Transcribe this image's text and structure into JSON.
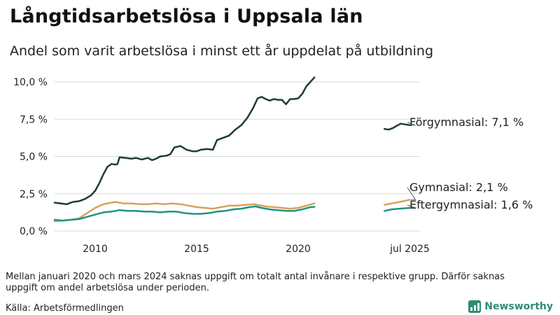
{
  "title": "Långtidsarbetslösa i Uppsala län",
  "subtitle": "Andel som varit arbetslösa i minst ett år uppdelat på utbildning",
  "footnote": "Mellan januari 2020 och mars 2024 saknas uppgift om totalt antal invånare i respektive grupp. Därför saknas uppgift om andel arbetslösa under perioden.",
  "source": "Källa: Arbetsförmedlingen",
  "brand": "Newsworthy",
  "colors": {
    "forgymnasial": "#1f3d33",
    "gymnasial": "#d4a45c",
    "eftergymnasial": "#1f9484",
    "grid": "#d9d9d9",
    "brand": "#2e8b74"
  },
  "chart_data": {
    "type": "line",
    "title": "Långtidsarbetslösa i Uppsala län",
    "xlabel": "",
    "ylabel": "",
    "ylim": [
      0,
      10.8
    ],
    "yticks": [
      0,
      2.5,
      5.0,
      7.5,
      10.0
    ],
    "ytick_labels": [
      "0,0 %",
      "2,5 %",
      "5,0 %",
      "7,5 %",
      "10,0 %"
    ],
    "xtick_labels": [
      {
        "x": 2010,
        "label": "2010"
      },
      {
        "x": 2015,
        "label": "2015"
      },
      {
        "x": 2020,
        "label": "2020"
      },
      {
        "x": 2025.5,
        "label": "jul 2025"
      }
    ],
    "xlim": [
      2008.0,
      2026.0
    ],
    "grid": true,
    "series": [
      {
        "name": "Förgymnasial",
        "label": "Förgymnasial: 7,1 %",
        "color_key": "forgymnasial",
        "segments": [
          [
            [
              2008.0,
              1.9
            ],
            [
              2008.3,
              1.85
            ],
            [
              2008.6,
              1.8
            ],
            [
              2008.9,
              1.95
            ],
            [
              2009.2,
              2.0
            ],
            [
              2009.5,
              2.15
            ],
            [
              2009.8,
              2.4
            ],
            [
              2010.0,
              2.7
            ],
            [
              2010.2,
              3.2
            ],
            [
              2010.4,
              3.8
            ],
            [
              2010.6,
              4.3
            ],
            [
              2010.8,
              4.5
            ],
            [
              2011.0,
              4.45
            ],
            [
              2011.1,
              4.5
            ],
            [
              2011.2,
              4.95
            ],
            [
              2011.5,
              4.9
            ],
            [
              2011.8,
              4.85
            ],
            [
              2012.0,
              4.9
            ],
            [
              2012.3,
              4.8
            ],
            [
              2012.6,
              4.9
            ],
            [
              2012.8,
              4.75
            ],
            [
              2013.0,
              4.85
            ],
            [
              2013.2,
              5.0
            ],
            [
              2013.5,
              5.05
            ],
            [
              2013.7,
              5.15
            ],
            [
              2013.9,
              5.6
            ],
            [
              2014.2,
              5.7
            ],
            [
              2014.5,
              5.45
            ],
            [
              2014.8,
              5.35
            ],
            [
              2015.0,
              5.35
            ],
            [
              2015.2,
              5.45
            ],
            [
              2015.5,
              5.5
            ],
            [
              2015.8,
              5.45
            ],
            [
              2016.0,
              6.1
            ],
            [
              2016.3,
              6.25
            ],
            [
              2016.6,
              6.4
            ],
            [
              2016.9,
              6.8
            ],
            [
              2017.2,
              7.1
            ],
            [
              2017.5,
              7.6
            ],
            [
              2017.8,
              8.3
            ],
            [
              2018.0,
              8.9
            ],
            [
              2018.2,
              9.0
            ],
            [
              2018.4,
              8.85
            ],
            [
              2018.6,
              8.75
            ],
            [
              2018.8,
              8.85
            ],
            [
              2019.0,
              8.8
            ],
            [
              2019.2,
              8.8
            ],
            [
              2019.4,
              8.5
            ],
            [
              2019.6,
              8.85
            ],
            [
              2019.8,
              8.85
            ],
            [
              2020.0,
              8.9
            ],
            [
              2020.2,
              9.2
            ],
            [
              2020.4,
              9.7
            ],
            [
              2020.6,
              10.0
            ],
            [
              2020.8,
              10.3
            ]
          ],
          [
            [
              2024.25,
              6.85
            ],
            [
              2024.45,
              6.8
            ],
            [
              2024.65,
              6.9
            ],
            [
              2024.85,
              7.05
            ],
            [
              2025.05,
              7.2
            ],
            [
              2025.25,
              7.15
            ],
            [
              2025.5,
              7.1
            ]
          ]
        ]
      },
      {
        "name": "Gymnasial",
        "label": "Gymnasial: 2,1 %",
        "color_key": "gymnasial",
        "segments": [
          [
            [
              2008.0,
              0.65
            ],
            [
              2008.4,
              0.7
            ],
            [
              2008.8,
              0.75
            ],
            [
              2009.2,
              0.85
            ],
            [
              2009.6,
              1.2
            ],
            [
              2010.0,
              1.55
            ],
            [
              2010.4,
              1.8
            ],
            [
              2010.8,
              1.9
            ],
            [
              2011.0,
              1.95
            ],
            [
              2011.4,
              1.85
            ],
            [
              2011.8,
              1.85
            ],
            [
              2012.2,
              1.8
            ],
            [
              2012.6,
              1.8
            ],
            [
              2013.0,
              1.85
            ],
            [
              2013.4,
              1.8
            ],
            [
              2013.8,
              1.85
            ],
            [
              2014.2,
              1.8
            ],
            [
              2014.6,
              1.7
            ],
            [
              2015.0,
              1.6
            ],
            [
              2015.4,
              1.55
            ],
            [
              2015.8,
              1.5
            ],
            [
              2016.2,
              1.6
            ],
            [
              2016.6,
              1.7
            ],
            [
              2017.0,
              1.7
            ],
            [
              2017.4,
              1.75
            ],
            [
              2017.8,
              1.8
            ],
            [
              2018.0,
              1.75
            ],
            [
              2018.4,
              1.65
            ],
            [
              2018.8,
              1.6
            ],
            [
              2019.2,
              1.55
            ],
            [
              2019.6,
              1.5
            ],
            [
              2020.0,
              1.55
            ],
            [
              2020.4,
              1.7
            ],
            [
              2020.8,
              1.85
            ]
          ],
          [
            [
              2024.25,
              1.75
            ],
            [
              2024.6,
              1.85
            ],
            [
              2025.0,
              1.95
            ],
            [
              2025.5,
              2.1
            ]
          ]
        ]
      },
      {
        "name": "Eftergymnasial",
        "label": "Eftergymnasial: 1,6 %",
        "color_key": "eftergymnasial",
        "segments": [
          [
            [
              2008.0,
              0.75
            ],
            [
              2008.4,
              0.7
            ],
            [
              2008.8,
              0.75
            ],
            [
              2009.2,
              0.8
            ],
            [
              2009.6,
              0.95
            ],
            [
              2010.0,
              1.1
            ],
            [
              2010.4,
              1.25
            ],
            [
              2010.8,
              1.3
            ],
            [
              2011.2,
              1.4
            ],
            [
              2011.6,
              1.35
            ],
            [
              2012.0,
              1.35
            ],
            [
              2012.4,
              1.3
            ],
            [
              2012.8,
              1.3
            ],
            [
              2013.2,
              1.25
            ],
            [
              2013.6,
              1.3
            ],
            [
              2014.0,
              1.3
            ],
            [
              2014.4,
              1.2
            ],
            [
              2014.8,
              1.15
            ],
            [
              2015.2,
              1.15
            ],
            [
              2015.6,
              1.2
            ],
            [
              2016.0,
              1.3
            ],
            [
              2016.4,
              1.35
            ],
            [
              2016.8,
              1.45
            ],
            [
              2017.2,
              1.5
            ],
            [
              2017.6,
              1.6
            ],
            [
              2017.9,
              1.65
            ],
            [
              2018.2,
              1.55
            ],
            [
              2018.6,
              1.45
            ],
            [
              2019.0,
              1.4
            ],
            [
              2019.4,
              1.35
            ],
            [
              2019.8,
              1.35
            ],
            [
              2020.2,
              1.45
            ],
            [
              2020.6,
              1.6
            ],
            [
              2020.8,
              1.62
            ]
          ],
          [
            [
              2024.25,
              1.35
            ],
            [
              2024.6,
              1.45
            ],
            [
              2025.0,
              1.5
            ],
            [
              2025.5,
              1.55
            ]
          ]
        ]
      }
    ]
  }
}
